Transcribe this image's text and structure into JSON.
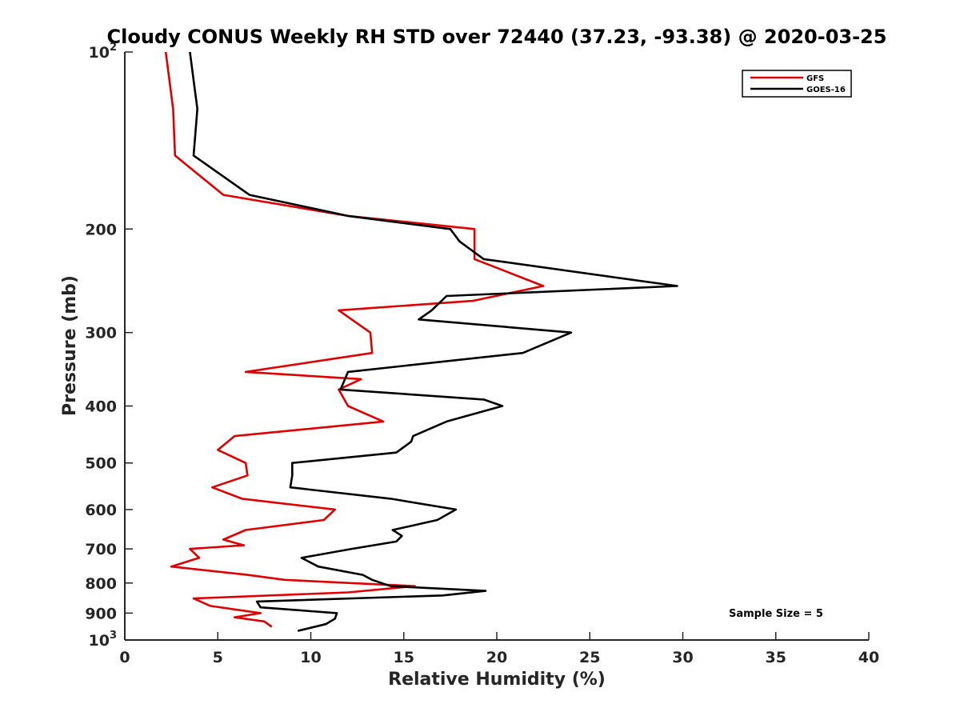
{
  "chart_data": {
    "type": "line",
    "title": "Cloudy CONUS Weekly RH STD over 72440 (37.23, -93.38) @ 2020-03-25",
    "xlabel": "Relative Humidity (%)",
    "ylabel": "Pressure (mb)",
    "xlim": [
      0,
      40
    ],
    "ylim": [
      100,
      1000
    ],
    "yscale": "log",
    "yreversed": true,
    "xticks": [
      0,
      5,
      10,
      15,
      20,
      25,
      30,
      35,
      40
    ],
    "xtick_labels": [
      "0",
      "5",
      "10",
      "15",
      "20",
      "25",
      "30",
      "35",
      "40"
    ],
    "yticks": [
      100,
      200,
      300,
      400,
      500,
      600,
      700,
      800,
      900,
      1000
    ],
    "ytick_labels": [
      {
        "base": "10",
        "exp": "2"
      },
      {
        "base": "200",
        "exp": ""
      },
      {
        "base": "300",
        "exp": ""
      },
      {
        "base": "400",
        "exp": ""
      },
      {
        "base": "500",
        "exp": ""
      },
      {
        "base": "600",
        "exp": ""
      },
      {
        "base": "700",
        "exp": ""
      },
      {
        "base": "800",
        "exp": ""
      },
      {
        "base": "900",
        "exp": ""
      },
      {
        "base": "10",
        "exp": "3"
      }
    ],
    "grid": false,
    "legend_position": "top-right",
    "series": [
      {
        "name": "GFS",
        "color": "#e00000",
        "points": [
          [
            2.2,
            100
          ],
          [
            2.6,
            125
          ],
          [
            2.7,
            150
          ],
          [
            5.3,
            175
          ],
          [
            12.0,
            190
          ],
          [
            18.8,
            200
          ],
          [
            18.8,
            225
          ],
          [
            22.5,
            250
          ],
          [
            18.7,
            265
          ],
          [
            11.5,
            275
          ],
          [
            13.2,
            300
          ],
          [
            13.3,
            325
          ],
          [
            6.5,
            350
          ],
          [
            12.7,
            360
          ],
          [
            11.5,
            375
          ],
          [
            12.0,
            400
          ],
          [
            13.9,
            425
          ],
          [
            5.9,
            450
          ],
          [
            5.0,
            475
          ],
          [
            6.5,
            500
          ],
          [
            6.6,
            525
          ],
          [
            4.7,
            550
          ],
          [
            6.3,
            575
          ],
          [
            11.3,
            600
          ],
          [
            10.7,
            625
          ],
          [
            6.5,
            650
          ],
          [
            5.3,
            675
          ],
          [
            6.4,
            690
          ],
          [
            3.5,
            700
          ],
          [
            4.0,
            725
          ],
          [
            2.5,
            750
          ],
          [
            6.6,
            775
          ],
          [
            8.6,
            790
          ],
          [
            15.6,
            810
          ],
          [
            12.0,
            830
          ],
          [
            3.7,
            850
          ],
          [
            4.6,
            875
          ],
          [
            7.3,
            900
          ],
          [
            5.9,
            915
          ],
          [
            7.5,
            930
          ],
          [
            7.9,
            950
          ]
        ]
      },
      {
        "name": "GOES-16",
        "color": "#000000",
        "points": [
          [
            3.5,
            100
          ],
          [
            3.9,
            125
          ],
          [
            3.7,
            150
          ],
          [
            6.7,
            175
          ],
          [
            12.0,
            190
          ],
          [
            17.5,
            200
          ],
          [
            18.0,
            210
          ],
          [
            19.3,
            225
          ],
          [
            29.7,
            250
          ],
          [
            17.3,
            260
          ],
          [
            16.5,
            275
          ],
          [
            15.8,
            285
          ],
          [
            24.0,
            300
          ],
          [
            21.4,
            325
          ],
          [
            12.0,
            350
          ],
          [
            11.6,
            375
          ],
          [
            19.3,
            390
          ],
          [
            20.3,
            400
          ],
          [
            17.3,
            425
          ],
          [
            15.5,
            450
          ],
          [
            15.4,
            460
          ],
          [
            14.6,
            480
          ],
          [
            9.0,
            500
          ],
          [
            9.0,
            525
          ],
          [
            8.9,
            550
          ],
          [
            14.3,
            575
          ],
          [
            17.8,
            600
          ],
          [
            16.8,
            625
          ],
          [
            14.4,
            650
          ],
          [
            14.9,
            665
          ],
          [
            14.6,
            680
          ],
          [
            12.2,
            700
          ],
          [
            9.5,
            725
          ],
          [
            10.4,
            750
          ],
          [
            12.8,
            775
          ],
          [
            13.3,
            790
          ],
          [
            14.3,
            810
          ],
          [
            19.4,
            825
          ],
          [
            17.1,
            840
          ],
          [
            7.1,
            860
          ],
          [
            7.3,
            880
          ],
          [
            11.4,
            900
          ],
          [
            11.3,
            920
          ],
          [
            10.8,
            940
          ],
          [
            9.3,
            965
          ]
        ]
      }
    ],
    "annotations": [
      {
        "text": "Sample Size = 5"
      }
    ]
  }
}
